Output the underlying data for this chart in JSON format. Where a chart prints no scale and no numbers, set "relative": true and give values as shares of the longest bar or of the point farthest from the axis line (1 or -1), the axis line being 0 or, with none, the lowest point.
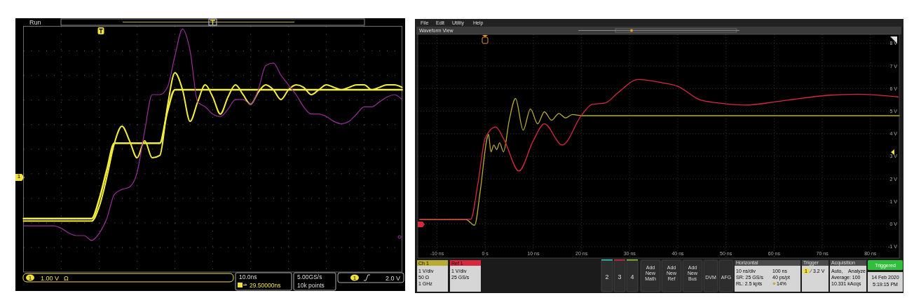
{
  "chart_data": [
    {
      "type": "line",
      "relative": true,
      "grid": true,
      "categories": [
        null,
        null,
        null,
        null,
        null,
        null,
        null,
        null,
        null,
        null,
        null,
        null,
        null,
        null,
        null,
        null,
        null,
        null,
        null,
        null,
        null,
        null,
        null,
        null,
        null,
        null,
        null,
        null,
        null,
        null,
        null,
        null,
        null,
        null,
        null,
        null,
        null,
        null,
        null,
        null,
        null,
        null,
        null,
        null,
        null,
        null,
        null,
        null,
        null,
        null,
        null
      ],
      "series": [
        {
          "color": "#f4ee3a",
          "values": [
            0.22,
            0.22,
            0.22,
            0.22,
            0.22,
            0.22,
            0.22,
            0.22,
            0.22,
            0.22,
            0.3,
            0.42,
            0.53,
            0.53,
            0.53,
            0.53,
            0.53,
            0.53,
            0.53,
            0.66,
            0.75,
            0.75,
            0.75,
            0.75,
            0.75,
            0.75,
            0.75,
            0.75,
            0.75,
            0.75,
            0.75,
            0.75,
            0.75,
            0.75,
            0.75,
            0.75,
            0.75,
            0.75,
            0.75,
            0.75,
            0.75,
            0.75,
            0.75,
            0.75,
            0.75,
            0.75,
            0.75,
            0.75,
            0.75,
            0.75,
            0.75
          ]
        },
        {
          "color": "#f4ee3a",
          "values": [
            0.21,
            0.21,
            0.21,
            0.21,
            0.21,
            0.21,
            0.21,
            0.21,
            0.21,
            0.21,
            0.27,
            0.39,
            0.53,
            0.6,
            0.54,
            0.47,
            0.54,
            0.47,
            0.48,
            0.68,
            0.82,
            0.75,
            0.62,
            0.7,
            0.77,
            0.72,
            0.65,
            0.72,
            0.77,
            0.73,
            0.69,
            0.74,
            0.77,
            0.75,
            0.71,
            0.75,
            0.77,
            0.76,
            0.73,
            0.75,
            0.77,
            0.76,
            0.75,
            0.76,
            0.77,
            0.77,
            0.75,
            0.76,
            0.77,
            0.77,
            0.76
          ]
        },
        {
          "color": "#9a2f9c",
          "values": [
            0.19,
            0.19,
            0.19,
            0.19,
            0.19,
            0.18,
            0.16,
            0.15,
            0.15,
            0.13,
            0.16,
            0.22,
            0.32,
            0.34,
            0.35,
            0.41,
            0.58,
            0.73,
            0.73,
            0.76,
            0.89,
            1,
            0.91,
            0.7,
            0.68,
            0.65,
            0.64,
            0.67,
            0.71,
            0.71,
            0.69,
            0.75,
            0.85,
            0.86,
            0.81,
            0.77,
            0.73,
            0.68,
            0.65,
            0.65,
            0.64,
            0.62,
            0.61,
            0.62,
            0.65,
            0.68,
            0.68,
            0.7,
            0.72,
            0.73,
            0.71
          ]
        }
      ],
      "annotations": [
        "Run",
        "1",
        "1.00 V",
        "Ω",
        "10.0ns",
        "29.50000ns",
        "5.00GS/s",
        "10k points",
        "1",
        "2.0 V",
        "1"
      ]
    },
    {
      "type": "line",
      "grid": true,
      "legend": "bottom left",
      "xlim": [
        -14,
        86
      ],
      "xticks": [
        {
          "value": -10,
          "label": "-10 ns"
        },
        {
          "value": 0,
          "label": "0 s"
        },
        {
          "value": 10,
          "label": "10 ns"
        },
        {
          "value": 20,
          "label": "20 ns"
        },
        {
          "value": 30,
          "label": "30 ns"
        },
        {
          "value": 40,
          "label": "40 ns"
        },
        {
          "value": 50,
          "label": "50 ns"
        },
        {
          "value": 60,
          "label": "60 ns"
        },
        {
          "value": 70,
          "label": "70 ns"
        },
        {
          "value": 80,
          "label": "80 ns"
        }
      ],
      "ylim": [
        -1.5,
        8.4
      ],
      "yticks": [
        {
          "value": -1,
          "label": "-1 V"
        },
        {
          "value": 0,
          "label": "0 V"
        },
        {
          "value": 1,
          "label": "1 V"
        },
        {
          "value": 2,
          "label": "2 V"
        },
        {
          "value": 3,
          "label": "3 V"
        },
        {
          "value": 4,
          "label": "4 V"
        },
        {
          "value": 5,
          "label": "5 V"
        },
        {
          "value": 6,
          "label": "6 V"
        },
        {
          "value": 7,
          "label": "7 V"
        },
        {
          "value": 8,
          "label": "8 V"
        }
      ],
      "series": [
        {
          "name": "Ch 1",
          "color": "#b9aa30",
          "x": [
            -13.6,
            -4,
            -2.2,
            -1,
            0.4,
            0.7,
            1.2,
            1.8,
            2.4,
            3,
            3.8,
            5,
            6.3,
            7.9,
            9.4,
            10.9,
            12.3,
            13.8,
            15.3,
            16.7,
            18.1,
            20,
            86
          ],
          "values": [
            0.2,
            0.2,
            -0.05,
            1.5,
            3.8,
            3.97,
            3.2,
            3.5,
            3.3,
            3.6,
            3.2,
            4.6,
            5.56,
            4.16,
            5.1,
            4.44,
            4.97,
            4.6,
            4.9,
            4.7,
            4.85,
            4.8,
            4.8
          ]
        },
        {
          "name": "Ref 1",
          "color": "#d8283e",
          "x": [
            -13.6,
            -3,
            -1.5,
            0,
            2.2,
            4,
            7,
            10,
            12.3,
            16,
            20,
            22.2,
            24.9,
            27.5,
            31.8,
            36.7,
            40,
            44.6,
            48.5,
            53.9,
            61.2,
            71,
            77.5,
            85.8
          ],
          "values": [
            0.2,
            0.22,
            1.8,
            3.8,
            4.3,
            3.7,
            2.35,
            3.7,
            4.44,
            3.5,
            4.82,
            5.3,
            5.36,
            5.8,
            6.4,
            6.26,
            6.1,
            5.5,
            5.36,
            5.27,
            5.44,
            5.7,
            5.75,
            5.63
          ]
        }
      ],
      "annotations": [
        "File",
        "Edit",
        "Utility",
        "Help",
        "Waveform View",
        "1 V/div",
        "50 Ω",
        "1 GHz",
        "1 V/div",
        "25 GS/s",
        "2",
        "3",
        "4",
        "Add New Math",
        "Add New Ref",
        "Add New Bus",
        "DVM",
        "AFG",
        "Horizontal",
        "10 ns/div",
        "100 ns",
        "SR: 25 GS/s",
        "40 ps/pt",
        "RL: 2.5 kpts",
        "14%",
        "Trigger",
        "1",
        "3.2 V",
        "Acquisition",
        "Auto,",
        "Analyze",
        "Average: 100",
        "10.331 kAcqs",
        "Triggered",
        "14 Feb 2020",
        "5:19:15 PM"
      ]
    }
  ]
}
